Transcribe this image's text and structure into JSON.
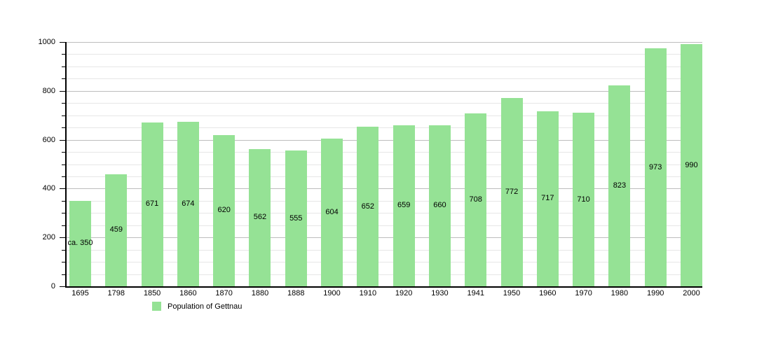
{
  "chart_data": {
    "type": "bar",
    "categories": [
      "1695",
      "1798",
      "1850",
      "1860",
      "1870",
      "1880",
      "1888",
      "1900",
      "1910",
      "1920",
      "1930",
      "1941",
      "1950",
      "1960",
      "1970",
      "1980",
      "1990",
      "2000"
    ],
    "values": [
      350,
      459,
      671,
      674,
      620,
      562,
      555,
      604,
      652,
      659,
      660,
      708,
      772,
      717,
      710,
      823,
      973,
      990
    ],
    "value_labels": [
      "ca. 350",
      "459",
      "671",
      "674",
      "620",
      "562",
      "555",
      "604",
      "652",
      "659",
      "660",
      "708",
      "772",
      "717",
      "710",
      "823",
      "973",
      "990"
    ],
    "title": "",
    "xlabel": "",
    "ylabel": "",
    "ylim": [
      0,
      1000
    ],
    "y_major_step": 200,
    "y_minor_step": 50,
    "y_tick_labels": [
      "0",
      "200",
      "400",
      "600",
      "800",
      "1000"
    ],
    "grid": true,
    "legend_position": "bottom-left",
    "legend_label": "Population of Gettnau",
    "colors": {
      "bar": "#95E295",
      "axis": "#000000",
      "major_grid": "#bdbdbd",
      "minor_grid": "#e7e7e7",
      "text": "#000000",
      "background": "#ffffff"
    }
  }
}
